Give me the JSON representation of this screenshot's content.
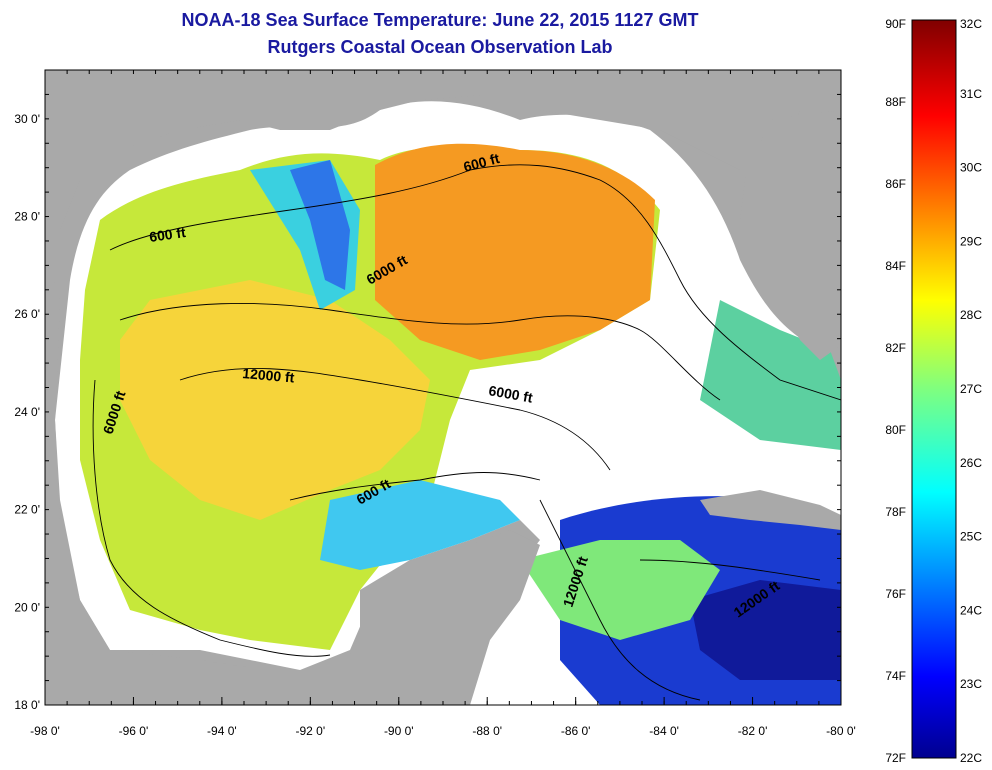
{
  "title": "NOAA-18 Sea Surface Temperature:  June 22, 2015 1127 GMT",
  "subtitle": "Rutgers Coastal Ocean Observation Lab",
  "map": {
    "lon_range": [
      -98,
      -80
    ],
    "lat_range": [
      18,
      31
    ],
    "x_ticks": [
      "-98 0'",
      "-96 0'",
      "-94 0'",
      "-92 0'",
      "-90 0'",
      "-88 0'",
      "-86 0'",
      "-84 0'",
      "-82 0'",
      "-80 0'"
    ],
    "y_ticks": [
      "18 0'",
      "20 0'",
      "22 0'",
      "24 0'",
      "26 0'",
      "28 0'",
      "30 0'"
    ],
    "land_color": "#a9a9a9",
    "cloud_color": "#ffffff",
    "contour_labels": [
      "600 ft",
      "600 ft",
      "600 ft",
      "6000 ft",
      "6000 ft",
      "6000 ft",
      "12000 ft",
      "12000 ft",
      "12000 ft"
    ]
  },
  "colorbar": {
    "fahrenheit_labels": [
      "90F",
      "88F",
      "86F",
      "84F",
      "82F",
      "80F",
      "78F",
      "76F",
      "74F",
      "72F"
    ],
    "celsius_labels": [
      "32C",
      "31C",
      "30C",
      "29C",
      "28C",
      "27C",
      "26C",
      "25C",
      "24C",
      "23C",
      "22C"
    ],
    "min_f": 72,
    "max_f": 90,
    "min_c": 22,
    "max_c": 32,
    "colormap": "jet"
  }
}
